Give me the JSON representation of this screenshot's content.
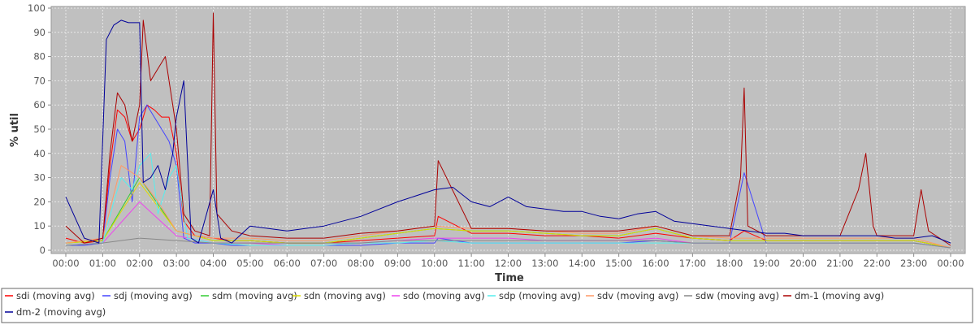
{
  "chart_data": {
    "type": "line",
    "title": "",
    "xlabel": "Time",
    "ylabel": "% util",
    "ylim": [
      0,
      100
    ],
    "y_ticks": [
      0,
      10,
      20,
      30,
      40,
      50,
      60,
      70,
      80,
      90,
      100
    ],
    "xlim": [
      0,
      24
    ],
    "x_tick_labels": [
      "00:00",
      "01:00",
      "02:00",
      "03:00",
      "04:00",
      "05:00",
      "06:00",
      "07:00",
      "08:00",
      "09:00",
      "10:00",
      "11:00",
      "12:00",
      "13:00",
      "14:00",
      "15:00",
      "16:00",
      "17:00",
      "18:00",
      "19:00",
      "20:00",
      "21:00",
      "22:00",
      "23:00",
      "00:00"
    ],
    "grid": true,
    "legend_position": "bottom",
    "series": [
      {
        "name": "sdi (moving avg)",
        "color": "#ff0000",
        "x": [
          0,
          0.5,
          1,
          1.2,
          1.4,
          1.6,
          1.8,
          2,
          2.2,
          2.4,
          2.6,
          2.8,
          3,
          3.2,
          3.5,
          4,
          4.5,
          5,
          6,
          7,
          8,
          9,
          10,
          10.1,
          11,
          12,
          13,
          14,
          15,
          16,
          17,
          18,
          18.4,
          19,
          20,
          21,
          22,
          23,
          24
        ],
        "y": [
          5,
          3,
          4,
          35,
          58,
          55,
          45,
          50,
          60,
          58,
          55,
          55,
          40,
          12,
          6,
          5,
          4,
          4,
          3,
          3,
          4,
          5,
          6,
          14,
          7,
          7,
          6,
          6,
          5,
          7,
          5,
          4,
          8,
          4,
          4,
          4,
          4,
          4,
          1
        ]
      },
      {
        "name": "sdj (moving avg)",
        "color": "#4444ff",
        "x": [
          0,
          0.5,
          1,
          1.2,
          1.4,
          1.6,
          1.8,
          2,
          2.2,
          2.4,
          2.6,
          2.8,
          3,
          3.2,
          3.5,
          4,
          4.5,
          5,
          6,
          7,
          8,
          9,
          10,
          10.1,
          11,
          12,
          13,
          14,
          15,
          16,
          17,
          18,
          18.4,
          19,
          20,
          21,
          22,
          23,
          24
        ],
        "y": [
          2,
          2,
          3,
          30,
          50,
          45,
          20,
          55,
          60,
          55,
          50,
          45,
          35,
          5,
          3,
          3,
          2,
          2,
          2,
          2,
          2,
          3,
          3,
          5,
          3,
          3,
          3,
          3,
          3,
          4,
          3,
          3,
          32,
          3,
          3,
          3,
          3,
          3,
          1
        ]
      },
      {
        "name": "sdm (moving avg)",
        "color": "#33cc33",
        "x": [
          0,
          1,
          2,
          3,
          4,
          5,
          6,
          7,
          8,
          9,
          10,
          11,
          12,
          13,
          14,
          15,
          16,
          17,
          18,
          19,
          20,
          21,
          22,
          23,
          24
        ],
        "y": [
          3,
          4,
          30,
          8,
          4,
          4,
          3,
          3,
          5,
          7,
          9,
          8,
          8,
          7,
          6,
          6,
          9,
          5,
          4,
          4,
          4,
          4,
          4,
          4,
          1
        ]
      },
      {
        "name": "sdn (moving avg)",
        "color": "#dddd00",
        "x": [
          0,
          1,
          2,
          3,
          4,
          5,
          6,
          7,
          8,
          9,
          10,
          11,
          12,
          13,
          14,
          15,
          16,
          17,
          18,
          19,
          20,
          21,
          22,
          23,
          24
        ],
        "y": [
          3,
          4,
          28,
          8,
          4,
          4,
          3,
          3,
          5,
          7,
          9,
          8,
          8,
          7,
          6,
          6,
          9,
          5,
          4,
          4,
          4,
          4,
          4,
          4,
          1
        ]
      },
      {
        "name": "sdo (moving avg)",
        "color": "#ee44ee",
        "x": [
          0,
          1,
          2,
          3,
          4,
          5,
          6,
          7,
          8,
          9,
          10,
          11,
          12,
          13,
          14,
          15,
          16,
          17,
          18,
          19,
          20,
          21,
          22,
          23,
          24
        ],
        "y": [
          2,
          3,
          20,
          6,
          3,
          3,
          2,
          2,
          3,
          4,
          5,
          5,
          5,
          4,
          4,
          4,
          5,
          3,
          3,
          3,
          3,
          3,
          3,
          3,
          1
        ]
      },
      {
        "name": "sdp (moving avg)",
        "color": "#55eeee",
        "x": [
          0,
          1,
          1.3,
          1.5,
          1.8,
          2,
          2.3,
          2.5,
          2.8,
          3,
          3.3,
          4,
          5,
          6,
          7,
          8,
          9,
          10,
          11,
          12,
          13,
          14,
          15,
          16,
          17,
          18,
          19,
          20,
          21,
          22,
          23,
          24
        ],
        "y": [
          2,
          3,
          20,
          30,
          25,
          35,
          40,
          15,
          30,
          35,
          5,
          3,
          2,
          2,
          2,
          3,
          3,
          4,
          3,
          3,
          3,
          3,
          3,
          3,
          3,
          3,
          3,
          3,
          3,
          3,
          3,
          1
        ]
      },
      {
        "name": "sdv (moving avg)",
        "color": "#ff9966",
        "x": [
          0,
          1,
          1.5,
          2,
          2.5,
          3,
          3.5,
          4,
          5,
          6,
          7,
          8,
          9,
          10,
          11,
          12,
          13,
          14,
          15,
          16,
          17,
          18,
          19,
          20,
          21,
          22,
          23,
          24
        ],
        "y": [
          3,
          5,
          35,
          30,
          20,
          8,
          6,
          5,
          5,
          4,
          4,
          6,
          8,
          10,
          9,
          9,
          8,
          7,
          7,
          10,
          6,
          5,
          5,
          5,
          5,
          5,
          5,
          1
        ]
      },
      {
        "name": "sdw (moving avg)",
        "color": "#888888",
        "x": [
          0,
          1,
          2,
          3,
          4,
          5,
          6,
          7,
          8,
          9,
          10,
          11,
          12,
          13,
          14,
          15,
          16,
          17,
          18,
          19,
          20,
          21,
          22,
          23,
          24
        ],
        "y": [
          2,
          3,
          5,
          4,
          3,
          3,
          3,
          3,
          3,
          4,
          4,
          4,
          4,
          4,
          4,
          4,
          4,
          3,
          3,
          3,
          3,
          3,
          3,
          3,
          1
        ]
      },
      {
        "name": "dm-1 (moving avg)",
        "color": "#aa0000",
        "x": [
          0,
          0.5,
          1,
          1.2,
          1.4,
          1.6,
          1.8,
          2,
          2.1,
          2.3,
          2.5,
          2.7,
          2.9,
          3,
          3.2,
          3.5,
          3.9,
          4,
          4.1,
          4.5,
          5,
          6,
          7,
          8,
          9,
          10,
          10.1,
          11,
          12,
          13,
          14,
          15,
          16,
          17,
          18,
          18.3,
          18.4,
          18.5,
          19,
          20,
          21,
          21.5,
          21.7,
          21.9,
          22,
          23,
          23.2,
          23.4,
          24
        ],
        "y": [
          10,
          3,
          5,
          40,
          65,
          60,
          45,
          60,
          95,
          70,
          75,
          80,
          60,
          50,
          15,
          8,
          6,
          98,
          15,
          8,
          6,
          5,
          5,
          7,
          8,
          10,
          37,
          9,
          9,
          8,
          8,
          8,
          10,
          6,
          6,
          30,
          67,
          10,
          6,
          6,
          6,
          25,
          40,
          10,
          6,
          6,
          25,
          8,
          2
        ]
      },
      {
        "name": "dm-2 (moving avg)",
        "color": "#000099",
        "x": [
          0,
          0.5,
          0.9,
          1.1,
          1.3,
          1.5,
          1.7,
          2,
          2.1,
          2.3,
          2.5,
          2.7,
          2.9,
          3,
          3.2,
          3.4,
          3.6,
          4,
          4.2,
          4.5,
          5,
          6,
          7,
          8,
          9,
          10,
          10.5,
          11,
          11.5,
          12,
          12.5,
          13,
          13.5,
          14,
          14.5,
          15,
          15.5,
          16,
          16.5,
          17,
          17.5,
          18,
          18.5,
          19,
          19.5,
          20,
          20.5,
          21,
          21.5,
          22,
          22.5,
          23,
          23.5,
          24
        ],
        "y": [
          22,
          5,
          3,
          87,
          93,
          95,
          94,
          94,
          28,
          30,
          35,
          25,
          40,
          55,
          70,
          5,
          3,
          25,
          5,
          3,
          10,
          8,
          10,
          14,
          20,
          25,
          26,
          20,
          18,
          22,
          18,
          17,
          16,
          16,
          14,
          13,
          15,
          16,
          12,
          11,
          10,
          9,
          8,
          7,
          7,
          6,
          6,
          6,
          6,
          6,
          5,
          5,
          6,
          3
        ]
      }
    ]
  }
}
